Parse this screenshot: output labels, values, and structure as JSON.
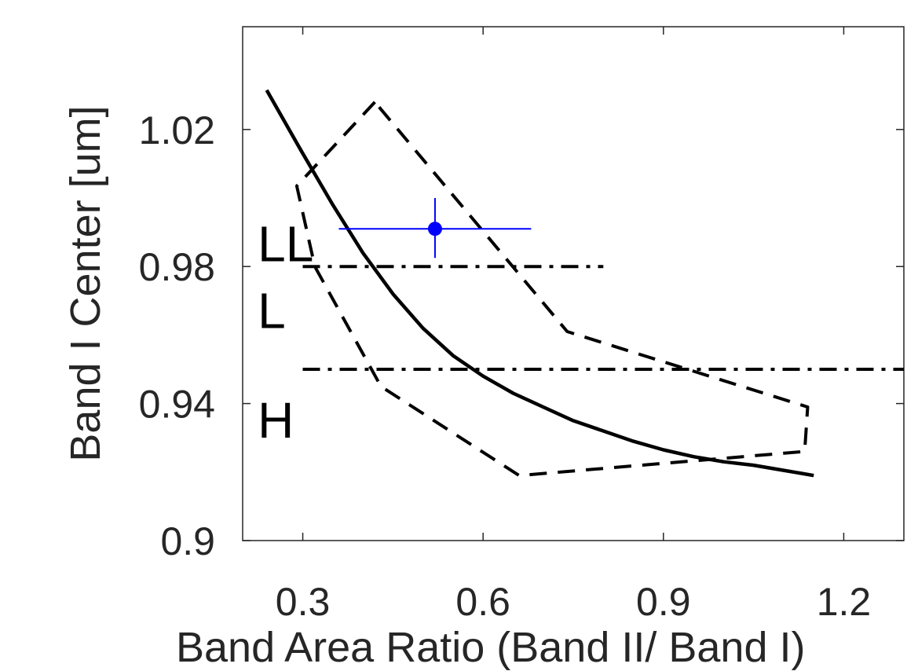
{
  "chart_data": {
    "type": "line",
    "title": "",
    "xlabel": "Band Area Ratio (Band II/ Band I)",
    "ylabel": "Band I Center [um]",
    "xlim": [
      0.2,
      1.3
    ],
    "ylim": [
      0.9,
      1.05
    ],
    "xticks": [
      0.3,
      0.6,
      0.9,
      1.2
    ],
    "xtick_labels": [
      "0.3",
      "0.6",
      "0.9",
      "1.2"
    ],
    "yticks": [
      0.9,
      0.94,
      0.98,
      1.02
    ],
    "ytick_labels": [
      "0.9",
      "0.94",
      "0.98",
      "1.02"
    ],
    "grid": false,
    "legend": "none",
    "colors": {
      "curve": "#000000",
      "point": "#0000ff",
      "axes": "#262626"
    },
    "series": [
      {
        "style": "solid",
        "x": [
          0.24,
          0.3,
          0.35,
          0.4,
          0.45,
          0.5,
          0.55,
          0.6,
          0.65,
          0.7,
          0.75,
          0.8,
          0.85,
          0.9,
          0.95,
          1.0,
          1.05,
          1.1,
          1.15
        ],
        "y": [
          1.0315,
          1.013,
          0.998,
          0.984,
          0.972,
          0.962,
          0.954,
          0.948,
          0.943,
          0.939,
          0.935,
          0.932,
          0.929,
          0.9265,
          0.9245,
          0.923,
          0.922,
          0.9205,
          0.919
        ]
      },
      {
        "style": "dashed",
        "x": [
          0.42,
          0.29,
          0.32,
          0.43,
          0.66,
          1.135,
          1.14,
          0.74,
          0.42
        ],
        "y": [
          1.028,
          1.0035,
          0.98,
          0.945,
          0.919,
          0.926,
          0.939,
          0.961,
          1.028
        ]
      },
      {
        "style": "dashdot",
        "x": [
          0.3,
          0.8
        ],
        "y": [
          0.98,
          0.98
        ]
      },
      {
        "style": "dashdot",
        "x": [
          0.3,
          1.35
        ],
        "y": [
          0.95,
          0.95
        ]
      }
    ],
    "point": {
      "x": 0.52,
      "y": 0.991,
      "xerr_low": 0.36,
      "xerr_high": 0.68,
      "yerr_low": 0.9825,
      "yerr_high": 1.0
    },
    "annotations": [
      {
        "text": "LL",
        "x": 0.225,
        "y": 0.9815
      },
      {
        "text": "L",
        "x": 0.225,
        "y": 0.962
      },
      {
        "text": "H",
        "x": 0.225,
        "y": 0.93
      }
    ]
  }
}
